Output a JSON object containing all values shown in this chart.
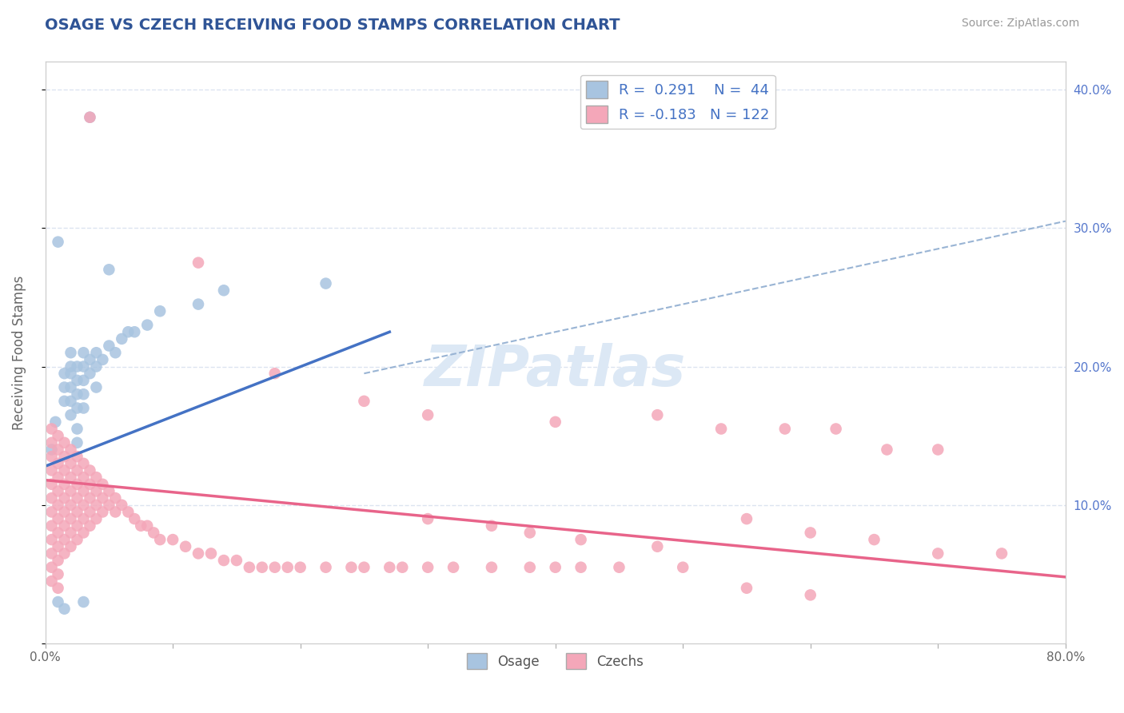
{
  "title": "OSAGE VS CZECH RECEIVING FOOD STAMPS CORRELATION CHART",
  "source": "Source: ZipAtlas.com",
  "ylabel": "Receiving Food Stamps",
  "xlim": [
    0.0,
    0.8
  ],
  "ylim": [
    0.0,
    0.42
  ],
  "osage_R": 0.291,
  "osage_N": 44,
  "czech_R": -0.183,
  "czech_N": 122,
  "osage_color": "#a8c4e0",
  "czech_color": "#f4a7b9",
  "osage_line_color": "#4472c4",
  "czech_line_color": "#e8648a",
  "trendline_dashed_color": "#99b4d4",
  "title_color": "#2F5496",
  "watermark": "ZIPatlas",
  "background_color": "#ffffff",
  "grid_color": "#dce4f0",
  "osage_line": [
    0.0,
    0.128,
    0.27,
    0.225
  ],
  "czech_line": [
    0.0,
    0.118,
    0.8,
    0.048
  ],
  "dash_line": [
    0.25,
    0.195,
    0.8,
    0.305
  ],
  "osage_points": [
    [
      0.005,
      0.14
    ],
    [
      0.008,
      0.16
    ],
    [
      0.01,
      0.29
    ],
    [
      0.015,
      0.195
    ],
    [
      0.015,
      0.185
    ],
    [
      0.015,
      0.175
    ],
    [
      0.02,
      0.21
    ],
    [
      0.02,
      0.2
    ],
    [
      0.02,
      0.195
    ],
    [
      0.02,
      0.185
    ],
    [
      0.02,
      0.175
    ],
    [
      0.02,
      0.165
    ],
    [
      0.025,
      0.2
    ],
    [
      0.025,
      0.19
    ],
    [
      0.025,
      0.18
    ],
    [
      0.025,
      0.17
    ],
    [
      0.025,
      0.155
    ],
    [
      0.025,
      0.145
    ],
    [
      0.03,
      0.21
    ],
    [
      0.03,
      0.2
    ],
    [
      0.03,
      0.19
    ],
    [
      0.03,
      0.18
    ],
    [
      0.03,
      0.17
    ],
    [
      0.035,
      0.205
    ],
    [
      0.035,
      0.195
    ],
    [
      0.04,
      0.21
    ],
    [
      0.04,
      0.2
    ],
    [
      0.04,
      0.185
    ],
    [
      0.045,
      0.205
    ],
    [
      0.05,
      0.215
    ],
    [
      0.055,
      0.21
    ],
    [
      0.06,
      0.22
    ],
    [
      0.065,
      0.225
    ],
    [
      0.07,
      0.225
    ],
    [
      0.08,
      0.23
    ],
    [
      0.09,
      0.24
    ],
    [
      0.12,
      0.245
    ],
    [
      0.14,
      0.255
    ],
    [
      0.22,
      0.26
    ],
    [
      0.01,
      0.03
    ],
    [
      0.015,
      0.025
    ],
    [
      0.03,
      0.03
    ],
    [
      0.035,
      0.38
    ],
    [
      0.05,
      0.27
    ]
  ],
  "czech_points": [
    [
      0.005,
      0.155
    ],
    [
      0.005,
      0.145
    ],
    [
      0.005,
      0.135
    ],
    [
      0.005,
      0.125
    ],
    [
      0.005,
      0.115
    ],
    [
      0.005,
      0.105
    ],
    [
      0.005,
      0.095
    ],
    [
      0.005,
      0.085
    ],
    [
      0.005,
      0.075
    ],
    [
      0.005,
      0.065
    ],
    [
      0.005,
      0.055
    ],
    [
      0.005,
      0.045
    ],
    [
      0.01,
      0.15
    ],
    [
      0.01,
      0.14
    ],
    [
      0.01,
      0.13
    ],
    [
      0.01,
      0.12
    ],
    [
      0.01,
      0.11
    ],
    [
      0.01,
      0.1
    ],
    [
      0.01,
      0.09
    ],
    [
      0.01,
      0.08
    ],
    [
      0.01,
      0.07
    ],
    [
      0.01,
      0.06
    ],
    [
      0.01,
      0.05
    ],
    [
      0.01,
      0.04
    ],
    [
      0.015,
      0.145
    ],
    [
      0.015,
      0.135
    ],
    [
      0.015,
      0.125
    ],
    [
      0.015,
      0.115
    ],
    [
      0.015,
      0.105
    ],
    [
      0.015,
      0.095
    ],
    [
      0.015,
      0.085
    ],
    [
      0.015,
      0.075
    ],
    [
      0.015,
      0.065
    ],
    [
      0.02,
      0.14
    ],
    [
      0.02,
      0.13
    ],
    [
      0.02,
      0.12
    ],
    [
      0.02,
      0.11
    ],
    [
      0.02,
      0.1
    ],
    [
      0.02,
      0.09
    ],
    [
      0.02,
      0.08
    ],
    [
      0.02,
      0.07
    ],
    [
      0.025,
      0.135
    ],
    [
      0.025,
      0.125
    ],
    [
      0.025,
      0.115
    ],
    [
      0.025,
      0.105
    ],
    [
      0.025,
      0.095
    ],
    [
      0.025,
      0.085
    ],
    [
      0.025,
      0.075
    ],
    [
      0.03,
      0.13
    ],
    [
      0.03,
      0.12
    ],
    [
      0.03,
      0.11
    ],
    [
      0.03,
      0.1
    ],
    [
      0.03,
      0.09
    ],
    [
      0.03,
      0.08
    ],
    [
      0.035,
      0.125
    ],
    [
      0.035,
      0.115
    ],
    [
      0.035,
      0.105
    ],
    [
      0.035,
      0.095
    ],
    [
      0.035,
      0.085
    ],
    [
      0.04,
      0.12
    ],
    [
      0.04,
      0.11
    ],
    [
      0.04,
      0.1
    ],
    [
      0.04,
      0.09
    ],
    [
      0.045,
      0.115
    ],
    [
      0.045,
      0.105
    ],
    [
      0.045,
      0.095
    ],
    [
      0.05,
      0.11
    ],
    [
      0.05,
      0.1
    ],
    [
      0.055,
      0.105
    ],
    [
      0.055,
      0.095
    ],
    [
      0.06,
      0.1
    ],
    [
      0.065,
      0.095
    ],
    [
      0.07,
      0.09
    ],
    [
      0.075,
      0.085
    ],
    [
      0.08,
      0.085
    ],
    [
      0.085,
      0.08
    ],
    [
      0.09,
      0.075
    ],
    [
      0.1,
      0.075
    ],
    [
      0.11,
      0.07
    ],
    [
      0.12,
      0.065
    ],
    [
      0.13,
      0.065
    ],
    [
      0.14,
      0.06
    ],
    [
      0.15,
      0.06
    ],
    [
      0.16,
      0.055
    ],
    [
      0.17,
      0.055
    ],
    [
      0.18,
      0.055
    ],
    [
      0.19,
      0.055
    ],
    [
      0.2,
      0.055
    ],
    [
      0.22,
      0.055
    ],
    [
      0.24,
      0.055
    ],
    [
      0.25,
      0.055
    ],
    [
      0.27,
      0.055
    ],
    [
      0.28,
      0.055
    ],
    [
      0.3,
      0.055
    ],
    [
      0.32,
      0.055
    ],
    [
      0.35,
      0.055
    ],
    [
      0.38,
      0.055
    ],
    [
      0.4,
      0.055
    ],
    [
      0.42,
      0.055
    ],
    [
      0.45,
      0.055
    ],
    [
      0.5,
      0.055
    ],
    [
      0.035,
      0.38
    ],
    [
      0.12,
      0.275
    ],
    [
      0.18,
      0.195
    ],
    [
      0.25,
      0.175
    ],
    [
      0.3,
      0.165
    ],
    [
      0.4,
      0.16
    ],
    [
      0.48,
      0.165
    ],
    [
      0.53,
      0.155
    ],
    [
      0.58,
      0.155
    ],
    [
      0.62,
      0.155
    ],
    [
      0.66,
      0.14
    ],
    [
      0.7,
      0.14
    ],
    [
      0.55,
      0.09
    ],
    [
      0.6,
      0.08
    ],
    [
      0.65,
      0.075
    ],
    [
      0.7,
      0.065
    ],
    [
      0.75,
      0.065
    ],
    [
      0.3,
      0.09
    ],
    [
      0.35,
      0.085
    ],
    [
      0.38,
      0.08
    ],
    [
      0.42,
      0.075
    ],
    [
      0.48,
      0.07
    ],
    [
      0.55,
      0.04
    ],
    [
      0.6,
      0.035
    ]
  ]
}
